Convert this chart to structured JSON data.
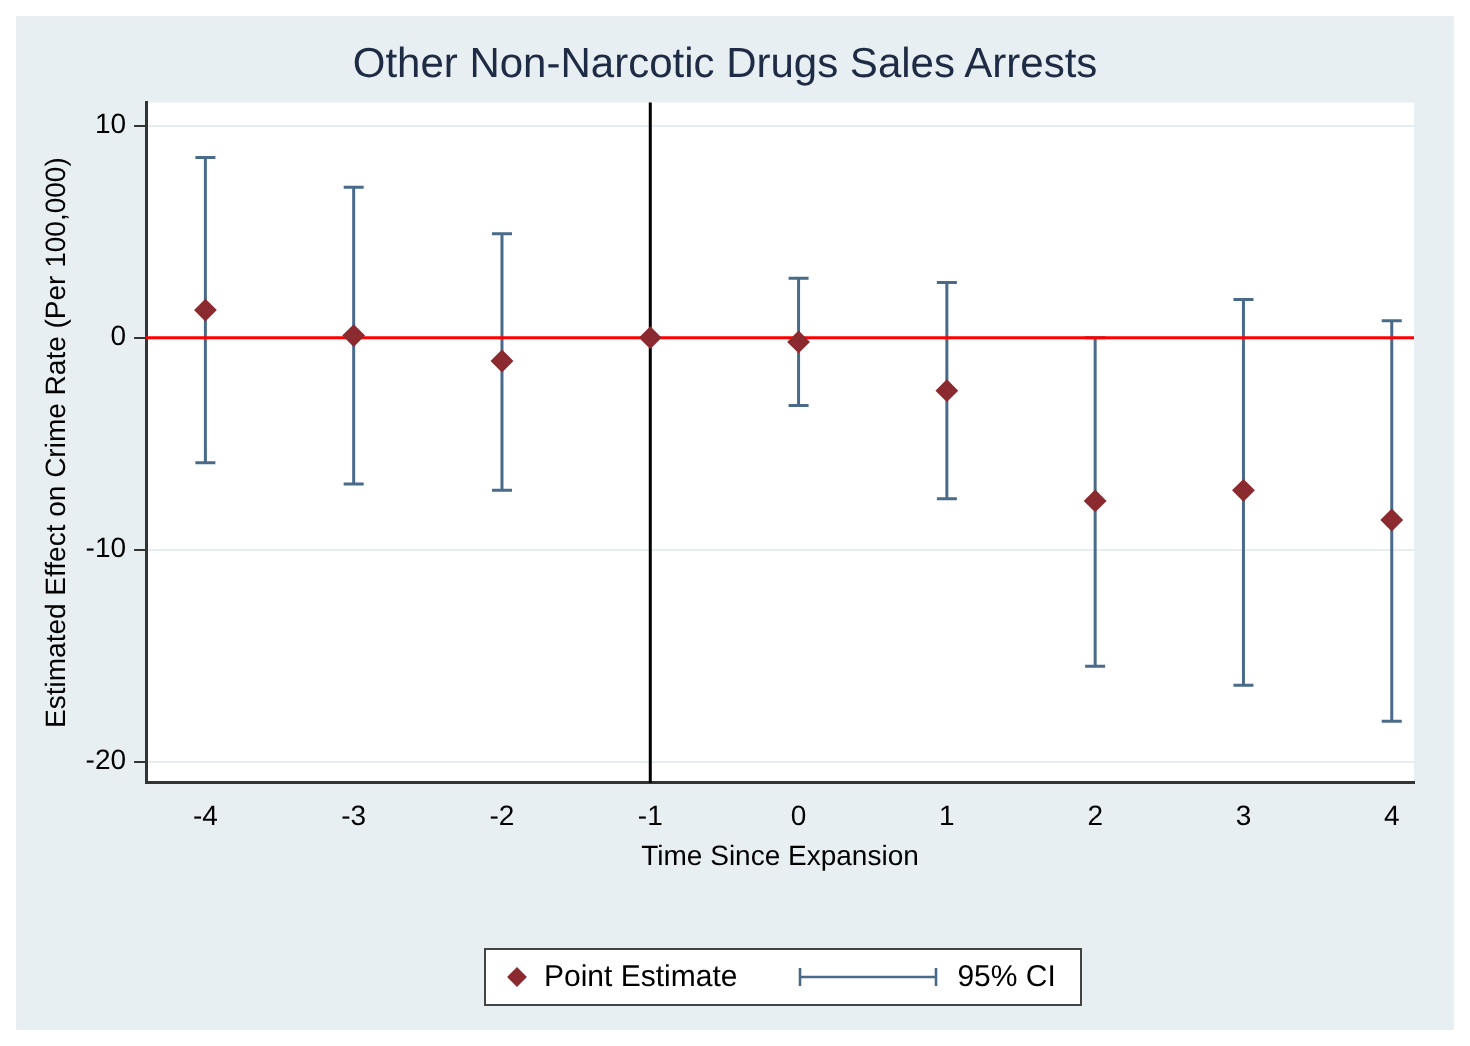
{
  "chart_data": {
    "type": "scatter",
    "title": "Other Non-Narcotic Drugs Sales Arrests",
    "xlabel": "Time Since Expansion",
    "ylabel": "Estimated Effect on Crime Rate (Per 100,000)",
    "x": [
      -4,
      -3,
      -2,
      -1,
      0,
      1,
      2,
      3,
      4
    ],
    "series": [
      {
        "name": "Point Estimate",
        "color": "#8b2a2f",
        "values": [
          1.3,
          0.1,
          -1.1,
          0,
          -0.2,
          -2.5,
          -7.7,
          -7.2,
          -8.6
        ],
        "errors": [
          [
            -5.9,
            8.5
          ],
          [
            -6.9,
            7.1
          ],
          [
            -7.2,
            4.9
          ],
          null,
          [
            -3.2,
            2.8
          ],
          [
            -7.6,
            2.6
          ],
          [
            -15.5,
            0
          ],
          [
            -16.4,
            1.8
          ],
          [
            -18.1,
            0.8
          ]
        ]
      }
    ],
    "annotations": [
      "95% CI"
    ],
    "xlim": [
      -4.4,
      4.15
    ],
    "xticks": [
      -4,
      -3,
      -2,
      -1,
      0,
      1,
      2,
      3,
      4
    ],
    "ylim": [
      -21,
      11.1
    ],
    "yticks": [
      -20,
      -10,
      0,
      10
    ],
    "ref_lines": [
      {
        "axis": "y",
        "value": 0,
        "color": "#ff0000"
      },
      {
        "axis": "x",
        "value": -1,
        "color": "#000000"
      }
    ],
    "grid": "y",
    "legend": "bottom",
    "marker": "diamond"
  }
}
